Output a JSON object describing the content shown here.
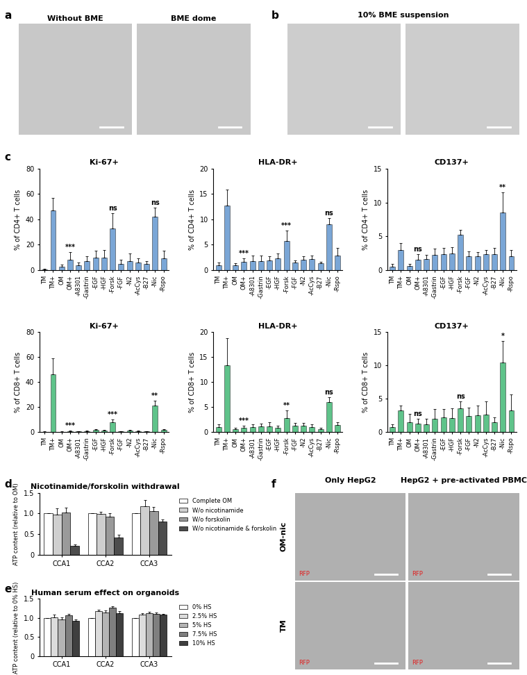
{
  "panel_labels": [
    "a",
    "b",
    "c",
    "d",
    "e",
    "f"
  ],
  "images": {
    "a": {
      "titles": [
        "Without BME",
        "BME dome"
      ]
    },
    "b": {
      "title": "10% BME suspension"
    },
    "f": {
      "column_titles": [
        "Only HepG2",
        "HepG2 + pre-activated PBMC"
      ],
      "row_titles": [
        "OM-nic",
        "TM"
      ],
      "channel": "RFP"
    }
  },
  "chart_data": [
    {
      "type": "bar",
      "title": "Ki-67+",
      "ylabel": "% of CD4+ T cells",
      "categories": [
        "TM",
        "TM+",
        "OM",
        "OM+",
        "-A8301",
        "-Gastrin",
        "-EGF",
        "-HGF",
        "-Forsk",
        "-FGF",
        "-N2",
        "-AcCys",
        "-B27",
        "-Nic",
        "-Rspo"
      ],
      "values": [
        0.5,
        47,
        2.5,
        8,
        4,
        7,
        10,
        10,
        33,
        5,
        7,
        6,
        5,
        42,
        9
      ],
      "errors": [
        0.3,
        10,
        2,
        6,
        2,
        4,
        5,
        6,
        12,
        3,
        6,
        3,
        2,
        7,
        6
      ],
      "color": "#7aa6d6",
      "ylim": [
        0,
        80
      ],
      "yticks": [
        0,
        20,
        40,
        60,
        80
      ],
      "annotations": [
        {
          "category": "OM+",
          "text": "***"
        },
        {
          "category": "-Forsk",
          "text": "ns"
        },
        {
          "category": "-Nic",
          "text": "ns"
        }
      ]
    },
    {
      "type": "bar",
      "title": "HLA-DR+",
      "ylabel": "% of CD4+ T cells",
      "categories": [
        "TM",
        "TM+",
        "OM",
        "OM+",
        "-A8301",
        "-Gastrin",
        "-EGF",
        "-HGF",
        "-Forsk",
        "-FGF",
        "-N2",
        "-AcCys",
        "-B27",
        "-Nic",
        "-Rspo"
      ],
      "values": [
        1,
        12.7,
        0.9,
        1.6,
        1.8,
        1.8,
        1.9,
        2.3,
        5.8,
        1.5,
        2,
        2.2,
        1.3,
        9,
        2.8
      ],
      "errors": [
        0.5,
        3.2,
        0.4,
        0.7,
        1,
        1,
        0.8,
        1,
        2,
        0.4,
        0.7,
        0.7,
        0.3,
        1.2,
        1.5
      ],
      "color": "#7aa6d6",
      "ylim": [
        0,
        20
      ],
      "yticks": [
        0,
        5,
        10,
        15,
        20
      ],
      "annotations": [
        {
          "category": "OM+",
          "text": "***"
        },
        {
          "category": "-Forsk",
          "text": "***"
        },
        {
          "category": "-Nic",
          "text": "ns"
        }
      ]
    },
    {
      "type": "bar",
      "title": "CD137+",
      "ylabel": "% of CD4+ T cells",
      "categories": [
        "TM",
        "TM+",
        "OM",
        "OM+",
        "-A8301",
        "-Gastrin",
        "-EGF",
        "-HGF",
        "-Forsk",
        "-FGF",
        "-N2",
        "-AcCys",
        "-B27",
        "-Nic",
        "-Rspo"
      ],
      "values": [
        0.5,
        3,
        0.6,
        1.5,
        1.6,
        2.2,
        2.3,
        2.4,
        5.2,
        2,
        2,
        2.3,
        2.3,
        8.5,
        2
      ],
      "errors": [
        0.4,
        1,
        0.3,
        0.8,
        0.6,
        1,
        1,
        1,
        0.7,
        0.8,
        0.7,
        0.7,
        1,
        3,
        1
      ],
      "color": "#7aa6d6",
      "ylim": [
        0,
        15
      ],
      "yticks": [
        0,
        5,
        10,
        15
      ],
      "annotations": [
        {
          "category": "OM+",
          "text": "ns"
        },
        {
          "category": "-Nic",
          "text": "**"
        }
      ]
    },
    {
      "type": "bar",
      "title": "Ki-67+",
      "ylabel": "% of CD8+ T cells",
      "categories": [
        "TM",
        "TM+",
        "OM",
        "OM+",
        "-A8301",
        "-Gastrin",
        "-EGF",
        "-HGF",
        "-Forsk",
        "-FGF",
        "-N2",
        "-AcCys",
        "-B27",
        "-Nic",
        "-Rspo"
      ],
      "values": [
        0.3,
        46,
        0.3,
        0.5,
        0.5,
        0.8,
        1.5,
        1,
        8,
        0.5,
        1,
        0.8,
        0.5,
        21,
        1.5
      ],
      "errors": [
        0.2,
        13,
        0.2,
        0.4,
        0.3,
        0.5,
        0.8,
        0.6,
        2,
        0.3,
        0.5,
        0.5,
        0.3,
        4,
        1
      ],
      "color": "#5fc38a",
      "ylim": [
        0,
        80
      ],
      "yticks": [
        0,
        20,
        40,
        60,
        80
      ],
      "annotations": [
        {
          "category": "OM+",
          "text": "***"
        },
        {
          "category": "-Forsk",
          "text": "***"
        },
        {
          "category": "-Nic",
          "text": "**"
        }
      ]
    },
    {
      "type": "bar",
      "title": "HLA-DR+",
      "ylabel": "% of CD8+ T cells",
      "categories": [
        "TM",
        "TM+",
        "OM",
        "OM+",
        "-A8301",
        "-Gastrin",
        "-EGF",
        "-HGF",
        "-Forsk",
        "-FGF",
        "-N2",
        "-AcCys",
        "-B27",
        "-Nic",
        "-Rspo"
      ],
      "values": [
        1,
        13.3,
        0.6,
        0.8,
        1,
        1.1,
        1.1,
        0.9,
        2.8,
        1.2,
        1.2,
        1,
        0.6,
        6,
        1.4
      ],
      "errors": [
        0.6,
        5.5,
        0.3,
        0.4,
        0.5,
        0.6,
        0.8,
        0.4,
        1.5,
        0.6,
        0.6,
        0.5,
        0.2,
        1,
        0.5
      ],
      "color": "#5fc38a",
      "ylim": [
        0,
        20
      ],
      "yticks": [
        0,
        5,
        10,
        15,
        20
      ],
      "annotations": [
        {
          "category": "OM+",
          "text": "***"
        },
        {
          "category": "-Forsk",
          "text": "**"
        },
        {
          "category": "-Nic",
          "text": "ns"
        }
      ]
    },
    {
      "type": "bar",
      "title": "CD137+",
      "ylabel": "% of CD8+ T cells",
      "categories": [
        "TM",
        "TM+",
        "OM",
        "OM+",
        "-A8301",
        "-Gastrin",
        "-EGF",
        "-HGF",
        "-Forsk",
        "-FGF",
        "-N2",
        "-AcCys",
        "-B27",
        "-Nic",
        "-Rspo"
      ],
      "values": [
        0.7,
        3.2,
        1.5,
        1.3,
        1.2,
        2,
        2.2,
        2.1,
        3.6,
        2.4,
        2.5,
        2.6,
        1.5,
        10.4,
        3.2
      ],
      "errors": [
        0.5,
        0.8,
        1.2,
        0.7,
        0.8,
        1.5,
        1.2,
        1.5,
        1,
        1.3,
        1.5,
        2,
        0.7,
        3.3,
        2.4
      ],
      "color": "#5fc38a",
      "ylim": [
        0,
        15
      ],
      "yticks": [
        0,
        5,
        10,
        15
      ],
      "annotations": [
        {
          "category": "OM+",
          "text": "ns"
        },
        {
          "category": "-Forsk",
          "text": "ns"
        },
        {
          "category": "-Nic",
          "text": "*"
        }
      ]
    },
    {
      "type": "grouped_bar",
      "title": "Nicotinamide/forskolin withdrawal",
      "ylabel": "ATP content (relative to OM)",
      "categories": [
        "CCA1",
        "CCA2",
        "CCA3"
      ],
      "series": [
        {
          "name": "Complete OM",
          "color": "#ffffff",
          "values": [
            1,
            1,
            1
          ],
          "errors": [
            0,
            0,
            0
          ]
        },
        {
          "name": "W/o nicotinamide",
          "color": "#cfcfcf",
          "values": [
            0.98,
            0.99,
            1.17
          ],
          "errors": [
            0.15,
            0.05,
            0.15
          ]
        },
        {
          "name": "W/o forskolin",
          "color": "#9a9a9a",
          "values": [
            1.02,
            0.93,
            1.05
          ],
          "errors": [
            0.12,
            0.08,
            0.1
          ]
        },
        {
          "name": "W/o nicotinamide & forskolin",
          "color": "#4d4d4d",
          "values": [
            0.22,
            0.42,
            0.8
          ],
          "errors": [
            0.03,
            0.07,
            0.05
          ]
        }
      ],
      "ylim": [
        0,
        1.5
      ],
      "yticks": [
        0,
        0.5,
        {
          "value": 1,
          "label": "1.0"
        },
        1.5
      ],
      "legend": "upper left"
    },
    {
      "type": "grouped_bar",
      "title": "Human serum effect on organoids",
      "ylabel": "ATP content (relative to 0% HS)",
      "categories": [
        "CCA1",
        "CCA2",
        "CCA3"
      ],
      "series": [
        {
          "name": "0% HS",
          "color": "#ffffff",
          "values": [
            1,
            1,
            1
          ],
          "errors": [
            0,
            0,
            0
          ]
        },
        {
          "name": "2.5% HS",
          "color": "#dcdcdc",
          "values": [
            1.02,
            1.17,
            1.09
          ],
          "errors": [
            0.06,
            0.05,
            0.03
          ]
        },
        {
          "name": "5% HS",
          "color": "#b4b4b4",
          "values": [
            0.95,
            1.14,
            1.12
          ],
          "errors": [
            0.07,
            0.05,
            0.03
          ]
        },
        {
          "name": "7.5% HS",
          "color": "#7f7f7f",
          "values": [
            1.07,
            1.26,
            1.11
          ],
          "errors": [
            0.04,
            0.05,
            0.03
          ]
        },
        {
          "name": "10% HS",
          "color": "#3f3f3f",
          "values": [
            0.92,
            1.13,
            1.08
          ],
          "errors": [
            0.04,
            0.04,
            0.03
          ]
        }
      ],
      "ylim": [
        0,
        1.5
      ],
      "yticks": [
        0,
        0.5,
        {
          "value": 1,
          "label": "1.0"
        },
        1.5
      ],
      "legend": "upper left"
    }
  ]
}
